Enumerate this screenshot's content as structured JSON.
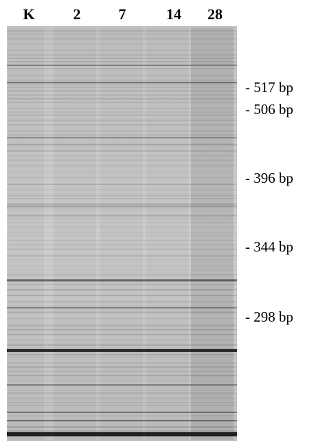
{
  "lanes": [
    "K",
    "2",
    "7",
    "14",
    "28"
  ],
  "markers": [
    "- 517 bp",
    "- 506 bp",
    "- 396 bp",
    "- 344 bp",
    "- 298 bp"
  ]
}
